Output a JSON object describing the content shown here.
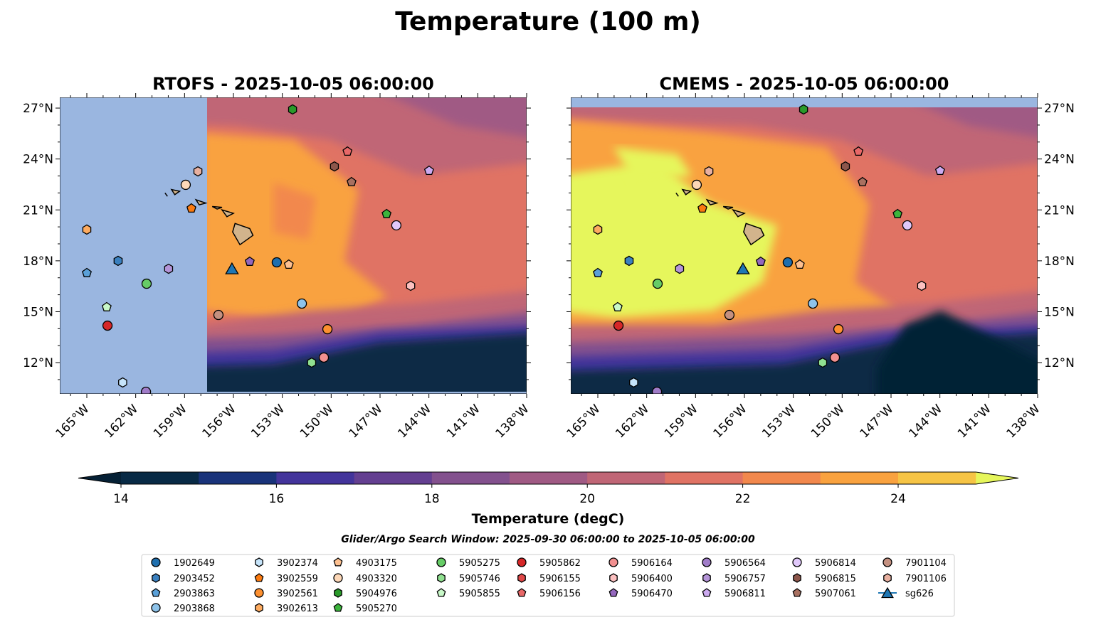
{
  "chart_data": {
    "type": "heatmap",
    "title": "Temperature (100 m)",
    "subtitle": "Glider/Argo Search Window: 2025-09-30 06:00:00 to 2025-10-05 06:00:00",
    "panels": [
      {
        "title": "RTOFS - 2025-10-05 06:00:00",
        "model": "RTOFS"
      },
      {
        "title": "CMEMS - 2025-10-05 06:00:00",
        "model": "CMEMS"
      }
    ],
    "xlim": [
      -166.66,
      -138
    ],
    "ylim": [
      10.16,
      27.63
    ],
    "xticks": [
      -165,
      -162,
      -159,
      -156,
      -153,
      -150,
      -147,
      -144,
      -141,
      -138
    ],
    "xtick_labels": [
      "165°W",
      "162°W",
      "159°W",
      "156°W",
      "153°W",
      "150°W",
      "147°W",
      "144°W",
      "141°W",
      "138°W"
    ],
    "yticks": [
      12,
      15,
      18,
      21,
      24,
      27
    ],
    "ytick_labels": [
      "12°N",
      "15°N",
      "18°N",
      "21°N",
      "24°N",
      "27°N"
    ],
    "colorbar": {
      "label": "Temperature (degC)",
      "min": 14,
      "max": 25,
      "step": 1,
      "extend": "both",
      "tick_values": [
        14,
        16,
        18,
        20,
        22,
        24
      ],
      "tick_labels": [
        "14",
        "16",
        "18",
        "20",
        "22",
        "24"
      ],
      "colors": [
        "#052035",
        "#082a45",
        "#19337a",
        "#43349b",
        "#643f91",
        "#83518e",
        "#a05a84",
        "#c06676",
        "#e07364",
        "#f2884d",
        "#f9a23f",
        "#f6c445",
        "#e6f65b"
      ]
    },
    "land_color": "#d2b48c",
    "mask_color": "#9ab6e0",
    "legend": {
      "placement": "bottom",
      "columns": 9
    },
    "series": [
      {
        "name": "1902649",
        "marker": "circle",
        "color": "#1f6fae",
        "lon": -153.34,
        "lat": 17.91
      },
      {
        "name": "2903452",
        "marker": "hexagon",
        "color": "#3a80bf",
        "lon": -163.08,
        "lat": 18.0
      },
      {
        "name": "2903863",
        "marker": "pentagon",
        "color": "#5aa0d8",
        "lon": -165.0,
        "lat": 17.28
      },
      {
        "name": "2903868",
        "marker": "circle",
        "color": "#8ec3ea",
        "lon": -151.8,
        "lat": 15.48
      },
      {
        "name": "3902374",
        "marker": "hexagon",
        "color": "#c6e4fa",
        "lon": -162.8,
        "lat": 10.83
      },
      {
        "name": "3902559",
        "marker": "pentagon",
        "color": "#fb7a10",
        "lon": -158.58,
        "lat": 21.09
      },
      {
        "name": "3902561",
        "marker": "circle",
        "color": "#fd9030",
        "lon": -150.23,
        "lat": 13.97
      },
      {
        "name": "3902613",
        "marker": "hexagon",
        "color": "#fdab60",
        "lon": -165.0,
        "lat": 19.84
      },
      {
        "name": "4903175",
        "marker": "pentagon",
        "color": "#fdc090",
        "lon": -152.6,
        "lat": 17.78
      },
      {
        "name": "4903320",
        "marker": "circle",
        "color": "#fdd8b8",
        "lon": -158.93,
        "lat": 22.48
      },
      {
        "name": "5904976",
        "marker": "hexagon",
        "color": "#2a9a2a",
        "lon": -152.37,
        "lat": 26.92
      },
      {
        "name": "5905270",
        "marker": "pentagon",
        "color": "#3cb43c",
        "lon": -146.6,
        "lat": 20.76
      },
      {
        "name": "5905275",
        "marker": "circle",
        "color": "#66cc66",
        "lon": -161.33,
        "lat": 16.65
      },
      {
        "name": "5905746",
        "marker": "hexagon",
        "color": "#90e090",
        "lon": -151.2,
        "lat": 12.0
      },
      {
        "name": "5905855",
        "marker": "pentagon",
        "color": "#c8f8c8",
        "lon": -163.78,
        "lat": 15.27
      },
      {
        "name": "5905862",
        "marker": "circle",
        "color": "#d62728",
        "lon": -163.73,
        "lat": 14.18
      },
      {
        "name": "5906155",
        "marker": "hexagon",
        "color": "#e04848",
        "lon": null,
        "lat": null
      },
      {
        "name": "5906156",
        "marker": "pentagon",
        "color": "#e86868",
        "lon": -149.0,
        "lat": 24.44
      },
      {
        "name": "5906164",
        "marker": "circle",
        "color": "#f29090",
        "lon": -150.45,
        "lat": 12.3
      },
      {
        "name": "5906400",
        "marker": "hexagon",
        "color": "#fcc0c0",
        "lon": -145.12,
        "lat": 16.53
      },
      {
        "name": "5906470",
        "marker": "pentagon",
        "color": "#9467bd",
        "lon": -155.0,
        "lat": 17.95
      },
      {
        "name": "5906564",
        "marker": "circle",
        "color": "#a07cc8",
        "lon": -161.37,
        "lat": 10.28
      },
      {
        "name": "5906757",
        "marker": "hexagon",
        "color": "#b494d8",
        "lon": -159.98,
        "lat": 17.53
      },
      {
        "name": "5906811",
        "marker": "pentagon",
        "color": "#ccaaf0",
        "lon": -143.99,
        "lat": 23.31
      },
      {
        "name": "5906814",
        "marker": "circle",
        "color": "#e0c8fa",
        "lon": -146.0,
        "lat": 20.09
      },
      {
        "name": "5906815",
        "marker": "hexagon",
        "color": "#8c564b",
        "lon": -149.8,
        "lat": 23.56
      },
      {
        "name": "5907061",
        "marker": "pentagon",
        "color": "#a87060",
        "lon": -148.75,
        "lat": 22.64
      },
      {
        "name": "7901104",
        "marker": "circle",
        "color": "#c49080",
        "lon": -156.92,
        "lat": 14.81
      },
      {
        "name": "7901106",
        "marker": "hexagon",
        "color": "#e8b0a0",
        "lon": -158.18,
        "lat": 23.27
      },
      {
        "name": "sg626",
        "marker": "triangle",
        "color": "#1f77b4",
        "lon": -156.09,
        "lat": 17.53
      }
    ]
  }
}
